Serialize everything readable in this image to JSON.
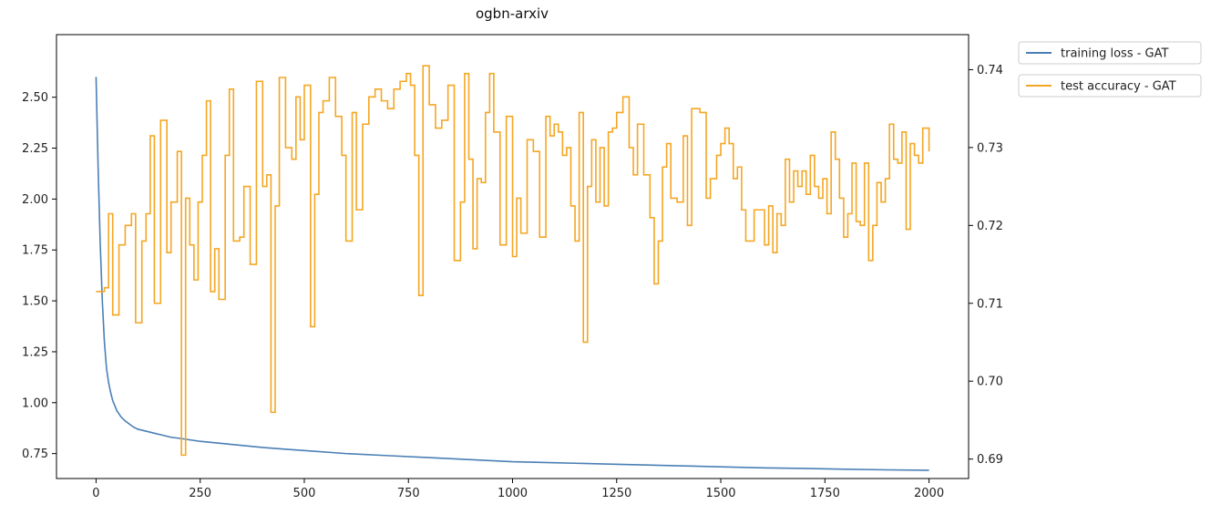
{
  "chart_data": {
    "type": "line",
    "title": "ogbn-arxiv",
    "xlabel": "",
    "ylabel_left": "",
    "ylabel_right": "",
    "xlim": [
      -95,
      2095
    ],
    "ylim_left": [
      0.6275,
      2.8075
    ],
    "ylim_right": [
      0.6875,
      0.7445
    ],
    "x_ticks": [
      0,
      250,
      500,
      750,
      1000,
      1250,
      1500,
      1750,
      2000
    ],
    "y_ticks_left": [
      0.75,
      1.0,
      1.25,
      1.5,
      1.75,
      2.0,
      2.25,
      2.5
    ],
    "y_tick_labels_left": [
      "0.75",
      "1.00",
      "1.25",
      "1.50",
      "1.75",
      "2.00",
      "2.25",
      "2.50"
    ],
    "y_ticks_right": [
      0.69,
      0.7,
      0.71,
      0.72,
      0.73,
      0.74
    ],
    "y_tick_labels_right": [
      "0.69",
      "0.70",
      "0.71",
      "0.72",
      "0.73",
      "0.74"
    ],
    "grid": false,
    "legend_position": "outside-top-right",
    "series": [
      {
        "name": "training loss - GAT",
        "axis": "left",
        "color": "#4a7fb5",
        "x": [
          0,
          5,
          10,
          15,
          20,
          25,
          30,
          35,
          40,
          50,
          60,
          70,
          80,
          90,
          100,
          120,
          140,
          160,
          180,
          200,
          250,
          300,
          350,
          400,
          450,
          500,
          600,
          700,
          800,
          900,
          1000,
          1100,
          1200,
          1300,
          1400,
          1500,
          1600,
          1700,
          1800,
          1900,
          2000
        ],
        "y": [
          2.6,
          2.15,
          1.78,
          1.5,
          1.3,
          1.17,
          1.1,
          1.05,
          1.01,
          0.96,
          0.93,
          0.91,
          0.895,
          0.88,
          0.87,
          0.86,
          0.85,
          0.84,
          0.83,
          0.825,
          0.81,
          0.8,
          0.79,
          0.78,
          0.772,
          0.765,
          0.75,
          0.74,
          0.73,
          0.72,
          0.71,
          0.705,
          0.7,
          0.695,
          0.69,
          0.685,
          0.68,
          0.677,
          0.673,
          0.67,
          0.668
        ]
      },
      {
        "name": "test accuracy - GAT",
        "axis": "right",
        "color": "#f5a623",
        "step": true,
        "x": [
          0,
          20,
          30,
          40,
          55,
          70,
          85,
          95,
          110,
          120,
          130,
          140,
          155,
          170,
          180,
          195,
          205,
          215,
          225,
          235,
          245,
          255,
          265,
          275,
          285,
          295,
          310,
          320,
          330,
          345,
          355,
          370,
          385,
          400,
          410,
          420,
          430,
          440,
          455,
          470,
          480,
          490,
          500,
          515,
          525,
          535,
          545,
          560,
          575,
          590,
          600,
          615,
          625,
          640,
          655,
          670,
          685,
          700,
          715,
          730,
          745,
          755,
          765,
          775,
          785,
          800,
          815,
          830,
          845,
          860,
          875,
          885,
          895,
          905,
          915,
          925,
          935,
          945,
          955,
          970,
          985,
          1000,
          1010,
          1020,
          1035,
          1050,
          1065,
          1080,
          1090,
          1100,
          1110,
          1120,
          1130,
          1140,
          1150,
          1160,
          1170,
          1180,
          1190,
          1200,
          1210,
          1220,
          1230,
          1240,
          1250,
          1265,
          1280,
          1290,
          1300,
          1315,
          1330,
          1340,
          1350,
          1360,
          1370,
          1380,
          1395,
          1410,
          1420,
          1430,
          1440,
          1450,
          1465,
          1475,
          1490,
          1500,
          1510,
          1520,
          1530,
          1540,
          1550,
          1560,
          1570,
          1580,
          1595,
          1605,
          1615,
          1625,
          1635,
          1645,
          1655,
          1665,
          1675,
          1685,
          1695,
          1705,
          1715,
          1725,
          1735,
          1745,
          1755,
          1765,
          1775,
          1785,
          1795,
          1805,
          1815,
          1825,
          1835,
          1845,
          1855,
          1865,
          1875,
          1885,
          1895,
          1905,
          1915,
          1925,
          1935,
          1945,
          1955,
          1965,
          1975,
          1985,
          2000
        ],
        "y": [
          0.7115,
          0.712,
          0.7215,
          0.7085,
          0.7175,
          0.72,
          0.7215,
          0.7075,
          0.718,
          0.7215,
          0.7315,
          0.71,
          0.7335,
          0.7165,
          0.723,
          0.7295,
          0.6905,
          0.7235,
          0.7175,
          0.713,
          0.723,
          0.729,
          0.736,
          0.7115,
          0.717,
          0.7105,
          0.729,
          0.7375,
          0.718,
          0.7185,
          0.725,
          0.715,
          0.7385,
          0.725,
          0.7265,
          0.696,
          0.7225,
          0.739,
          0.73,
          0.7285,
          0.7365,
          0.731,
          0.738,
          0.707,
          0.724,
          0.7345,
          0.736,
          0.739,
          0.734,
          0.729,
          0.718,
          0.7345,
          0.722,
          0.733,
          0.7365,
          0.7375,
          0.736,
          0.735,
          0.7375,
          0.7385,
          0.7395,
          0.738,
          0.729,
          0.711,
          0.7405,
          0.7355,
          0.7325,
          0.7335,
          0.738,
          0.7155,
          0.723,
          0.7395,
          0.7285,
          0.717,
          0.726,
          0.7255,
          0.7345,
          0.7395,
          0.732,
          0.7175,
          0.734,
          0.716,
          0.7235,
          0.719,
          0.731,
          0.7295,
          0.7185,
          0.734,
          0.7315,
          0.733,
          0.732,
          0.729,
          0.73,
          0.7225,
          0.718,
          0.7345,
          0.705,
          0.725,
          0.731,
          0.723,
          0.73,
          0.7225,
          0.732,
          0.7325,
          0.7345,
          0.7365,
          0.73,
          0.7265,
          0.733,
          0.7265,
          0.721,
          0.7125,
          0.718,
          0.7275,
          0.7305,
          0.7235,
          0.723,
          0.7315,
          0.72,
          0.735,
          0.735,
          0.7345,
          0.7235,
          0.726,
          0.729,
          0.7305,
          0.7325,
          0.7305,
          0.726,
          0.7275,
          0.722,
          0.718,
          0.718,
          0.722,
          0.722,
          0.7175,
          0.7225,
          0.7165,
          0.7215,
          0.72,
          0.7285,
          0.723,
          0.727,
          0.725,
          0.727,
          0.724,
          0.729,
          0.725,
          0.7235,
          0.726,
          0.7215,
          0.732,
          0.7285,
          0.7235,
          0.7185,
          0.7215,
          0.728,
          0.7205,
          0.72,
          0.728,
          0.7155,
          0.72,
          0.7255,
          0.723,
          0.726,
          0.733,
          0.7285,
          0.728,
          0.732,
          0.7195,
          0.7305,
          0.729,
          0.728,
          0.7325,
          0.7295
        ]
      }
    ]
  }
}
